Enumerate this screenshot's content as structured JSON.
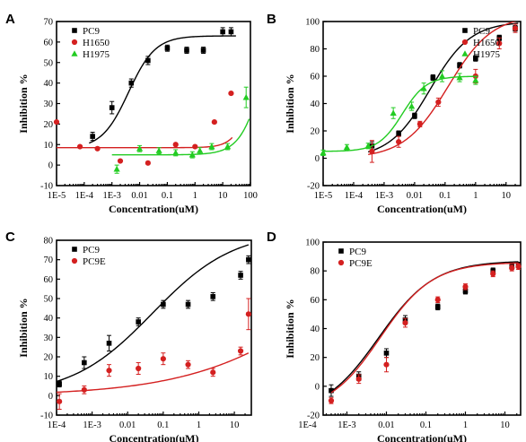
{
  "chart_data": [
    {
      "type": "scatter",
      "panel": "A",
      "xlabel": "Concentration(uM)",
      "ylabel": "Inhibition %",
      "xscale": "log",
      "xlim": [
        1e-05,
        100
      ],
      "ylim": [
        -10,
        70
      ],
      "xticks": [
        1e-05,
        0.0001,
        0.001,
        0.01,
        0.1,
        1,
        10,
        100
      ],
      "xtick_labels": [
        "1E-5",
        "1E-4",
        "1E-3",
        "0.01",
        "0.1",
        "1",
        "10",
        "100"
      ],
      "yticks": [
        -10,
        0,
        10,
        20,
        30,
        40,
        50,
        60,
        70
      ],
      "ytick_labels": [
        "-10",
        "0",
        "10",
        "20",
        "30",
        "40",
        "50",
        "60",
        "70"
      ],
      "legend_position": "top-left",
      "series": [
        {
          "name": "PC9",
          "color": "#000000",
          "marker": "square",
          "x": [
            0.0002,
            0.001,
            0.005,
            0.02,
            0.1,
            0.5,
            2,
            10,
            20
          ],
          "y": [
            14,
            28,
            40,
            51,
            57,
            56,
            56,
            65,
            65
          ],
          "err": [
            2,
            3,
            2,
            2,
            1.5,
            1.5,
            1.5,
            2,
            2
          ],
          "curve": {
            "bottom": 8,
            "top": 63,
            "logec50": -2.4,
            "hill": 0.9,
            "xmin": 0.00015,
            "xmax": 30
          }
        },
        {
          "name": "H1650",
          "color": "#d42020",
          "marker": "circle",
          "x": [
            1e-05,
            7e-05,
            0.0003,
            0.002,
            0.02,
            0.2,
            1,
            5,
            20
          ],
          "y": [
            21,
            9,
            8,
            2,
            1,
            10,
            9,
            21,
            35
          ],
          "err": [
            0,
            0,
            0,
            0,
            0,
            0,
            0,
            0,
            0
          ],
          "curve": {
            "bottom": 8.5,
            "top": 100,
            "logec50": 2.3,
            "hill": 1.3,
            "xmin": 1e-05,
            "xmax": 22
          }
        },
        {
          "name": "H1975",
          "color": "#22cc22",
          "marker": "triangle",
          "x": [
            0.0015,
            0.01,
            0.05,
            0.2,
            0.8,
            1.5,
            4,
            15,
            70
          ],
          "y": [
            -2,
            8,
            7,
            6,
            5,
            7,
            9,
            9,
            33
          ],
          "err": [
            2,
            1.5,
            1.5,
            1.5,
            1.5,
            1.5,
            1.5,
            1.5,
            5
          ],
          "curve": {
            "bottom": 5,
            "top": 100,
            "logec50": 2.6,
            "hill": 1.0,
            "xmin": 0.001,
            "xmax": 90
          }
        }
      ]
    },
    {
      "type": "scatter",
      "panel": "B",
      "xlabel": "Concentration(uM)",
      "ylabel": "Inhibition %",
      "xscale": "log",
      "xlim": [
        1e-05,
        30
      ],
      "ylim": [
        -20,
        100
      ],
      "xticks": [
        1e-05,
        0.0001,
        0.001,
        0.01,
        0.1,
        1,
        10
      ],
      "xtick_labels": [
        "1E-5",
        "1E-4",
        "1E-3",
        "0.01",
        "0.1",
        "1",
        "10"
      ],
      "yticks": [
        -20,
        0,
        20,
        40,
        60,
        80,
        100
      ],
      "ytick_labels": [
        "-20",
        "0",
        "20",
        "40",
        "60",
        "80",
        "100"
      ],
      "legend_position": "top-right",
      "series": [
        {
          "name": "PC9",
          "color": "#000000",
          "marker": "square",
          "x": [
            0.0004,
            0.003,
            0.01,
            0.04,
            0.3,
            1,
            6,
            20
          ],
          "y": [
            9,
            18,
            31,
            59,
            68,
            73,
            88,
            95
          ],
          "err": [
            3,
            2,
            2,
            2,
            2,
            2,
            2,
            2
          ],
          "curve": {
            "bottom": 0,
            "top": 100,
            "logec50": -1.5,
            "hill": 0.65,
            "xmin": 0.0003,
            "xmax": 25
          }
        },
        {
          "name": "H1650",
          "color": "#d42020",
          "marker": "circle",
          "x": [
            0.0004,
            0.003,
            0.015,
            0.06,
            1,
            6,
            20
          ],
          "y": [
            5,
            12,
            25,
            41,
            60,
            84,
            95
          ],
          "err": [
            8,
            4,
            2,
            3,
            5,
            4,
            3
          ],
          "curve": {
            "bottom": 0,
            "top": 105,
            "logec50": -0.9,
            "hill": 0.6,
            "xmin": 0.0003,
            "xmax": 25
          }
        },
        {
          "name": "H1975",
          "color": "#22cc22",
          "marker": "triangle",
          "x": [
            1e-05,
            6e-05,
            0.0003,
            0.002,
            0.008,
            0.02,
            0.08,
            0.3,
            1
          ],
          "y": [
            4,
            8,
            9,
            33,
            38,
            51,
            60,
            59,
            57
          ],
          "err": [
            2,
            2,
            2,
            4,
            3,
            4,
            4,
            3,
            3
          ],
          "curve": {
            "bottom": 5,
            "top": 60,
            "logec50": -2.4,
            "hill": 1.1,
            "xmin": 1e-05,
            "xmax": 1.2
          }
        }
      ]
    },
    {
      "type": "scatter",
      "panel": "C",
      "xlabel": "Concentration(uM)",
      "ylabel": "Inhibition %",
      "xscale": "log",
      "xlim": [
        0.0001,
        30
      ],
      "ylim": [
        -10,
        80
      ],
      "xticks": [
        0.0001,
        0.001,
        0.01,
        0.1,
        1,
        10
      ],
      "xtick_labels": [
        "1E-4",
        "1E-3",
        "0.01",
        "0.1",
        "1",
        "10"
      ],
      "yticks": [
        -10,
        0,
        10,
        20,
        30,
        40,
        50,
        60,
        70,
        80
      ],
      "ytick_labels": [
        "-10",
        "0",
        "10",
        "20",
        "30",
        "40",
        "50",
        "60",
        "70",
        "80"
      ],
      "legend_position": "top-left",
      "series": [
        {
          "name": "PC9",
          "color": "#000000",
          "marker": "square",
          "x": [
            0.00012,
            0.0006,
            0.003,
            0.02,
            0.1,
            0.5,
            2.5,
            15,
            25
          ],
          "y": [
            6,
            17,
            27,
            38,
            47,
            47,
            51,
            62,
            70
          ],
          "err": [
            1.5,
            3,
            4,
            2,
            2,
            2,
            2,
            2,
            2
          ],
          "curve": {
            "bottom": 0,
            "top": 85,
            "logec50": -1.3,
            "hill": 0.38,
            "xmin": 0.0001,
            "xmax": 25
          }
        },
        {
          "name": "PC9E",
          "color": "#d42020",
          "marker": "circle",
          "x": [
            0.00012,
            0.0006,
            0.003,
            0.02,
            0.1,
            0.5,
            2.5,
            15,
            25
          ],
          "y": [
            -3,
            3,
            13,
            14,
            19,
            16,
            12,
            23,
            42
          ],
          "err": [
            4,
            2,
            3,
            3,
            3,
            2,
            2,
            2,
            8
          ],
          "curve": {
            "bottom": 0,
            "top": 100,
            "logec50": 3.9,
            "hill": 0.22,
            "xmin": 0.0001,
            "xmax": 25
          }
        }
      ]
    },
    {
      "type": "scatter",
      "panel": "D",
      "xlabel": "Concentration(uM)",
      "ylabel": "Inhibition %",
      "xscale": "log",
      "xlim": [
        0.00025,
        25
      ],
      "ylim": [
        -20,
        100
      ],
      "xticks": [
        0.0001,
        0.001,
        0.01,
        0.1,
        1,
        10
      ],
      "xtick_labels": [
        "1E-4",
        "1E-3",
        "0.01",
        "0.1",
        "1",
        "10"
      ],
      "yticks": [
        -20,
        0,
        20,
        40,
        60,
        80,
        100
      ],
      "ytick_labels": [
        "-20",
        "0",
        "20",
        "40",
        "60",
        "80",
        "100"
      ],
      "legend_position": "top-left",
      "series": [
        {
          "name": "PC9",
          "color": "#000000",
          "marker": "square",
          "x": [
            0.0004,
            0.002,
            0.01,
            0.03,
            0.2,
            1,
            5,
            15,
            22
          ],
          "y": [
            -3,
            7,
            23,
            46,
            55,
            66,
            80,
            83,
            84
          ],
          "err": [
            4,
            3,
            3,
            3,
            2,
            2,
            2,
            2,
            2
          ],
          "curve": {
            "bottom": -20,
            "top": 87,
            "logec50": -2.2,
            "hill": 0.62,
            "xmin": 0.0004,
            "xmax": 22
          }
        },
        {
          "name": "PC9E",
          "color": "#d42020",
          "marker": "circle",
          "x": [
            0.0004,
            0.002,
            0.01,
            0.03,
            0.2,
            1,
            5,
            15,
            22
          ],
          "y": [
            -10,
            5,
            15,
            44,
            60,
            69,
            78,
            82,
            83
          ],
          "err": [
            2,
            3,
            5,
            3,
            2,
            2,
            2,
            2,
            2
          ],
          "curve": {
            "bottom": -18,
            "top": 86,
            "logec50": -2.15,
            "hill": 0.66,
            "xmin": 0.0004,
            "xmax": 22
          }
        }
      ]
    }
  ]
}
